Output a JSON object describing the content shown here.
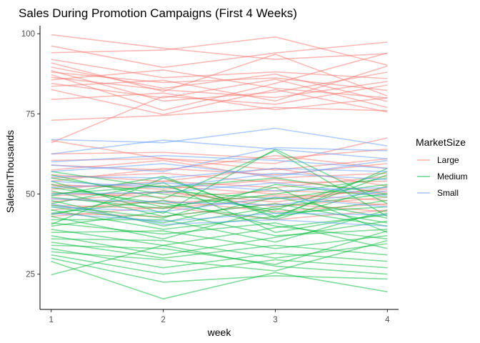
{
  "chart_data": {
    "type": "line",
    "title": "Sales During Promotion Campaigns (First 4 Weeks)",
    "xlabel": "week",
    "ylabel": "SalesInThousands",
    "x": [
      1,
      2,
      3,
      4
    ],
    "xlim": [
      0.9,
      4.1
    ],
    "ylim": [
      14.0,
      102.5
    ],
    "yticks": [
      25,
      50,
      75,
      100
    ],
    "grid": false,
    "legend": {
      "title": "MarketSize",
      "placement": "right"
    },
    "groups": [
      {
        "name": "Large",
        "color": "#F8766D"
      },
      {
        "name": "Medium",
        "color": "#00BA38"
      },
      {
        "name": "Small",
        "color": "#619CFF"
      }
    ],
    "series": [
      {
        "group": "Large",
        "values": [
          99.7,
          95.5,
          92.0,
          93.8
        ]
      },
      {
        "group": "Large",
        "values": [
          96.2,
          89.5,
          94.0,
          97.4
        ]
      },
      {
        "group": "Large",
        "values": [
          94.1,
          94.9,
          99.0,
          90.2
        ]
      },
      {
        "group": "Large",
        "values": [
          92.0,
          86.3,
          88.1,
          86.0
        ]
      },
      {
        "group": "Large",
        "values": [
          90.9,
          82.0,
          93.6,
          80.6
        ]
      },
      {
        "group": "Large",
        "values": [
          89.6,
          83.0,
          87.4,
          78.9
        ]
      },
      {
        "group": "Large",
        "values": [
          88.5,
          79.0,
          81.8,
          88.0
        ]
      },
      {
        "group": "Large",
        "values": [
          88.0,
          84.8,
          86.2,
          82.3
        ]
      },
      {
        "group": "Large",
        "values": [
          87.2,
          76.1,
          84.5,
          94.0
        ]
      },
      {
        "group": "Large",
        "values": [
          86.4,
          82.5,
          80.1,
          85.1
        ]
      },
      {
        "group": "Large",
        "values": [
          85.6,
          88.7,
          83.0,
          80.0
        ]
      },
      {
        "group": "Large",
        "values": [
          84.5,
          80.0,
          85.8,
          77.0
        ]
      },
      {
        "group": "Large",
        "values": [
          83.6,
          85.5,
          79.0,
          89.9
        ]
      },
      {
        "group": "Large",
        "values": [
          82.6,
          74.8,
          82.6,
          75.6
        ]
      },
      {
        "group": "Large",
        "values": [
          79.5,
          81.5,
          76.3,
          80.0
        ]
      },
      {
        "group": "Large",
        "values": [
          73.0,
          74.5,
          77.0,
          76.0
        ]
      },
      {
        "group": "Large",
        "values": [
          66.0,
          80.5,
          78.0,
          84.0
        ]
      },
      {
        "group": "Large",
        "values": [
          66.7,
          61.0,
          59.5,
          67.5
        ]
      },
      {
        "group": "Large",
        "values": [
          62.5,
          63.0,
          61.0,
          64.0
        ]
      },
      {
        "group": "Large",
        "values": [
          60.5,
          61.0,
          57.5,
          61.0
        ]
      },
      {
        "group": "Large",
        "values": [
          59.0,
          57.5,
          62.0,
          58.0
        ]
      },
      {
        "group": "Large",
        "values": [
          57.5,
          60.5,
          55.0,
          56.5
        ]
      },
      {
        "group": "Large",
        "values": [
          56.0,
          54.0,
          58.0,
          52.5
        ]
      },
      {
        "group": "Large",
        "values": [
          55.0,
          56.5,
          53.5,
          54.0
        ]
      },
      {
        "group": "Large",
        "values": [
          54.0,
          58.0,
          56.0,
          59.5
        ]
      },
      {
        "group": "Large",
        "values": [
          53.0,
          51.5,
          54.5,
          50.5
        ]
      },
      {
        "group": "Large",
        "values": [
          52.5,
          52.5,
          50.0,
          48.0
        ]
      },
      {
        "group": "Large",
        "values": [
          51.5,
          54.0,
          52.0,
          55.5
        ]
      },
      {
        "group": "Large",
        "values": [
          50.5,
          49.0,
          51.0,
          50.0
        ]
      },
      {
        "group": "Large",
        "values": [
          49.5,
          50.5,
          47.5,
          52.0
        ]
      },
      {
        "group": "Large",
        "values": [
          48.5,
          47.0,
          49.5,
          46.5
        ]
      },
      {
        "group": "Large",
        "values": [
          47.5,
          51.0,
          46.0,
          49.0
        ]
      },
      {
        "group": "Large",
        "values": [
          46.5,
          45.5,
          48.5,
          51.5
        ]
      },
      {
        "group": "Large",
        "values": [
          45.0,
          48.0,
          44.5,
          47.0
        ]
      },
      {
        "group": "Large",
        "values": [
          44.0,
          43.0,
          47.0,
          44.5
        ]
      },
      {
        "group": "Large",
        "values": [
          43.0,
          46.0,
          42.0,
          45.0
        ]
      },
      {
        "group": "Medium",
        "values": [
          57.0,
          52.0,
          55.0,
          50.0
        ]
      },
      {
        "group": "Medium",
        "values": [
          56.0,
          48.5,
          63.5,
          43.0
        ]
      },
      {
        "group": "Medium",
        "values": [
          55.0,
          50.0,
          45.0,
          57.0
        ]
      },
      {
        "group": "Medium",
        "values": [
          54.0,
          44.0,
          64.0,
          47.0
        ]
      },
      {
        "group": "Medium",
        "values": [
          53.0,
          46.0,
          50.0,
          55.0
        ]
      },
      {
        "group": "Medium",
        "values": [
          52.0,
          47.0,
          42.0,
          52.5
        ]
      },
      {
        "group": "Medium",
        "values": [
          51.0,
          43.0,
          47.0,
          41.0
        ]
      },
      {
        "group": "Medium",
        "values": [
          50.0,
          52.5,
          44.0,
          46.0
        ]
      },
      {
        "group": "Medium",
        "values": [
          49.0,
          45.5,
          52.0,
          38.0
        ]
      },
      {
        "group": "Medium",
        "values": [
          48.0,
          40.0,
          46.0,
          50.0
        ]
      },
      {
        "group": "Medium",
        "values": [
          47.0,
          53.5,
          38.0,
          44.0
        ]
      },
      {
        "group": "Medium",
        "values": [
          46.0,
          41.0,
          49.0,
          42.5
        ]
      },
      {
        "group": "Medium",
        "values": [
          45.0,
          39.0,
          43.0,
          48.0
        ]
      },
      {
        "group": "Medium",
        "values": [
          44.0,
          48.0,
          40.0,
          36.0
        ]
      },
      {
        "group": "Medium",
        "values": [
          43.0,
          36.0,
          45.5,
          40.0
        ]
      },
      {
        "group": "Medium",
        "values": [
          42.0,
          42.0,
          35.0,
          45.0
        ]
      },
      {
        "group": "Medium",
        "values": [
          41.0,
          37.5,
          41.0,
          33.0
        ]
      },
      {
        "group": "Medium",
        "values": [
          40.0,
          44.5,
          37.0,
          39.0
        ]
      },
      {
        "group": "Medium",
        "values": [
          39.0,
          34.0,
          39.5,
          43.5
        ]
      },
      {
        "group": "Medium",
        "values": [
          38.0,
          38.5,
          33.0,
          37.0
        ]
      },
      {
        "group": "Medium",
        "values": [
          37.0,
          31.0,
          36.5,
          41.5
        ]
      },
      {
        "group": "Medium",
        "values": [
          36.0,
          35.5,
          30.0,
          34.5
        ]
      },
      {
        "group": "Medium",
        "values": [
          35.0,
          30.0,
          34.0,
          31.0
        ]
      },
      {
        "group": "Medium",
        "values": [
          34.0,
          33.0,
          28.0,
          38.5
        ]
      },
      {
        "group": "Medium",
        "values": [
          33.0,
          27.0,
          31.5,
          29.0
        ]
      },
      {
        "group": "Medium",
        "values": [
          32.0,
          29.5,
          26.0,
          35.5
        ]
      },
      {
        "group": "Medium",
        "values": [
          31.0,
          25.0,
          29.5,
          27.0
        ]
      },
      {
        "group": "Medium",
        "values": [
          30.0,
          22.5,
          24.5,
          23.5
        ]
      },
      {
        "group": "Medium",
        "values": [
          29.0,
          17.3,
          25.5,
          19.5
        ]
      },
      {
        "group": "Medium",
        "values": [
          24.8,
          34.0,
          27.5,
          25.0
        ]
      },
      {
        "group": "Medium",
        "values": [
          40.5,
          55.0,
          43.0,
          56.0
        ]
      },
      {
        "group": "Medium",
        "values": [
          43.5,
          51.0,
          48.5,
          53.0
        ]
      },
      {
        "group": "Medium",
        "values": [
          46.5,
          42.5,
          53.0,
          49.0
        ]
      },
      {
        "group": "Medium",
        "values": [
          49.5,
          55.5,
          42.5,
          58.0
        ]
      },
      {
        "group": "Small",
        "values": [
          67.0,
          66.0,
          70.5,
          65.0
        ]
      },
      {
        "group": "Small",
        "values": [
          62.5,
          66.8,
          64.0,
          61.0
        ]
      },
      {
        "group": "Small",
        "values": [
          60.0,
          62.0,
          60.5,
          58.0
        ]
      },
      {
        "group": "Small",
        "values": [
          59.0,
          57.0,
          64.5,
          63.5
        ]
      },
      {
        "group": "Small",
        "values": [
          57.0,
          59.5,
          55.5,
          60.5
        ]
      },
      {
        "group": "Small",
        "values": [
          55.5,
          55.0,
          58.0,
          57.0
        ]
      },
      {
        "group": "Small",
        "values": [
          54.0,
          52.0,
          56.5,
          54.5
        ]
      },
      {
        "group": "Small",
        "values": [
          52.0,
          53.5,
          51.0,
          52.0
        ]
      },
      {
        "group": "Small",
        "values": [
          50.0,
          50.5,
          53.5,
          49.5
        ]
      },
      {
        "group": "Small",
        "values": [
          48.5,
          47.5,
          46.5,
          51.0
        ]
      },
      {
        "group": "Small",
        "values": [
          46.0,
          44.5,
          49.0,
          46.0
        ]
      },
      {
        "group": "Small",
        "values": [
          44.0,
          41.5,
          44.0,
          43.5
        ]
      },
      {
        "group": "Small",
        "values": [
          47.0,
          40.5,
          42.0,
          40.0
        ]
      }
    ]
  }
}
